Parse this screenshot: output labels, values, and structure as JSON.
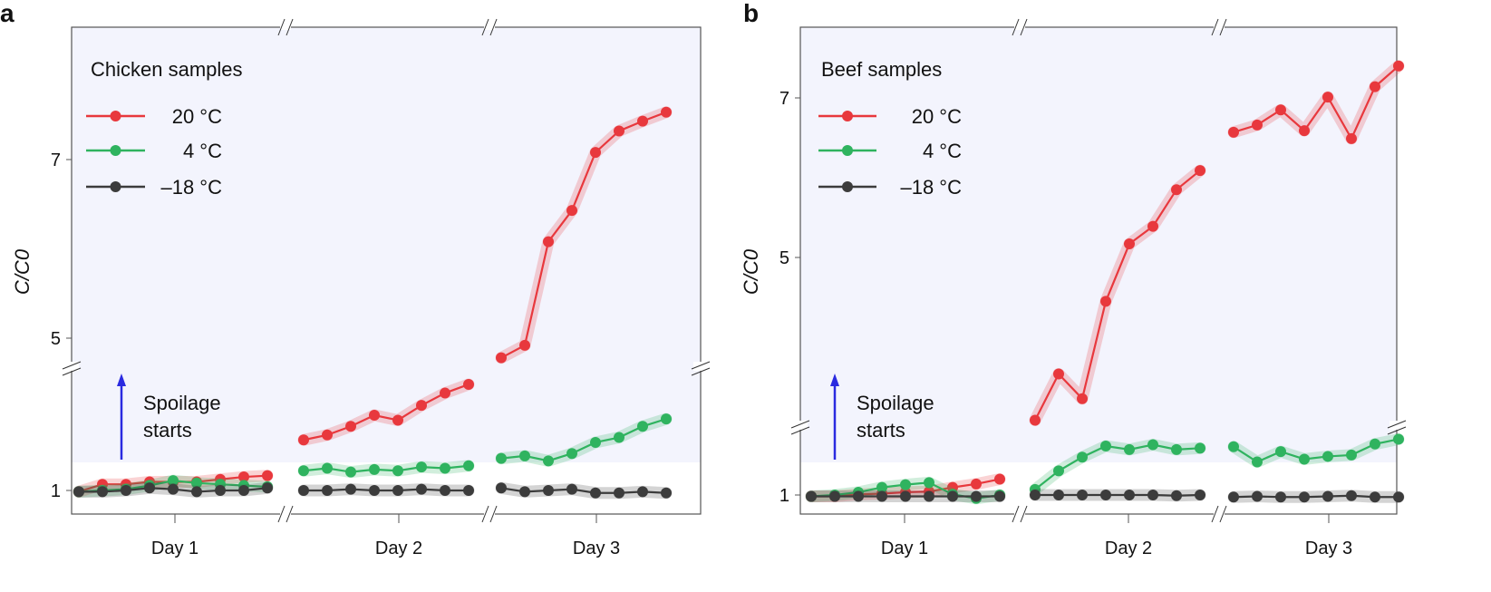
{
  "colors": {
    "red": "#e8383d",
    "green": "#2fb35f",
    "black": "#3c3c3c",
    "arrow": "#2a2ae0",
    "background": "#f3f4fd"
  },
  "chart_data": [
    {
      "type": "line",
      "panel_label": "a",
      "legend_title": "Chicken samples",
      "legend_placement": "top-left",
      "ylabel": "C/C0",
      "yticks": [
        1,
        5,
        7
      ],
      "y_axis_break": true,
      "x_axis_breaks": true,
      "categories": [
        "Day 1",
        "Day 2",
        "Day 3"
      ],
      "annotation": {
        "line1": "Spoilage",
        "line2": "starts"
      },
      "series": [
        {
          "name": "20 °C",
          "color": "red",
          "values": [
            [
              0.99,
              1.05,
              1.05,
              1.07,
              1.07,
              1.07,
              1.09,
              1.11,
              1.12
            ],
            [
              1.41,
              1.45,
              1.52,
              1.61,
              1.57,
              1.69,
              1.79,
              1.86
            ],
            [
              4.78,
              4.92,
              6.08,
              6.43,
              7.08,
              7.32,
              7.43,
              7.53
            ]
          ]
        },
        {
          "name": "4 °C",
          "color": "green",
          "values": [
            [
              0.99,
              1.0,
              1.01,
              1.04,
              1.08,
              1.06,
              1.05,
              1.04,
              1.03
            ],
            [
              1.16,
              1.18,
              1.15,
              1.17,
              1.16,
              1.19,
              1.18,
              1.2
            ],
            [
              1.26,
              1.28,
              1.24,
              1.3,
              1.39,
              1.43,
              1.52,
              1.58
            ]
          ]
        },
        {
          "name": "–18 °C",
          "color": "black",
          "values": [
            [
              0.99,
              0.99,
              1.0,
              1.02,
              1.01,
              0.99,
              1.0,
              1.0,
              1.02
            ],
            [
              1.0,
              1.0,
              1.01,
              1.0,
              1.0,
              1.01,
              1.0,
              1.0
            ],
            [
              1.02,
              0.99,
              1.0,
              1.01,
              0.98,
              0.98,
              0.99,
              0.98
            ]
          ]
        }
      ]
    },
    {
      "type": "line",
      "panel_label": "b",
      "legend_title": "Beef samples",
      "legend_placement": "top-left",
      "ylabel": "C/C0",
      "yticks": [
        1,
        5,
        7
      ],
      "y_axis_break": true,
      "x_axis_breaks": true,
      "categories": [
        "Day 1",
        "Day 2",
        "Day 3"
      ],
      "annotation": {
        "line1": "Spoilage",
        "line2": "starts"
      },
      "series": [
        {
          "name": "20 °C",
          "color": "red",
          "values": [
            [
              0.98,
              0.98,
              1.01,
              1.02,
              1.04,
              1.05,
              1.11,
              1.16,
              1.23
            ],
            [
              2.96,
              3.54,
              3.23,
              4.45,
              5.17,
              5.39,
              5.85,
              6.09
            ],
            [
              6.57,
              6.66,
              6.85,
              6.59,
              7.01,
              6.49,
              7.14,
              7.4
            ]
          ]
        },
        {
          "name": "4 °C",
          "color": "green",
          "values": [
            [
              0.98,
              1.0,
              1.04,
              1.11,
              1.15,
              1.18,
              1.01,
              0.95,
              1.0
            ],
            [
              1.08,
              1.35,
              1.55,
              1.71,
              1.66,
              1.73,
              1.66,
              1.68
            ],
            [
              1.7,
              1.48,
              1.63,
              1.52,
              1.56,
              1.58,
              1.74,
              1.81
            ]
          ]
        },
        {
          "name": "–18 °C",
          "color": "black",
          "values": [
            [
              0.98,
              0.98,
              0.98,
              0.98,
              0.98,
              0.98,
              0.98,
              0.98,
              0.98
            ],
            [
              1.0,
              1.0,
              1.0,
              1.0,
              1.0,
              1.0,
              0.99,
              1.0
            ],
            [
              0.97,
              0.98,
              0.97,
              0.97,
              0.98,
              0.99,
              0.97,
              0.97
            ]
          ]
        }
      ]
    }
  ]
}
